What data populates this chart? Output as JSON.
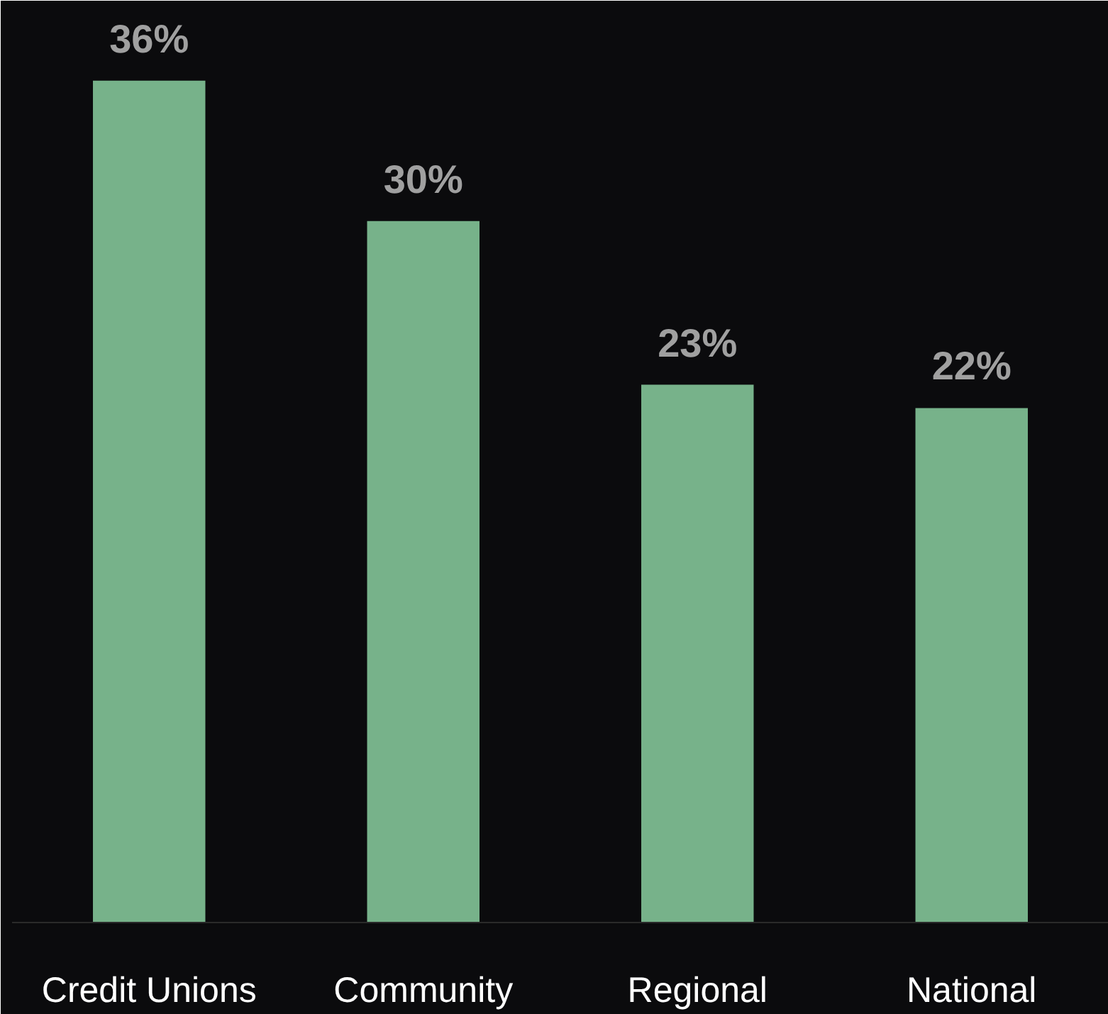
{
  "chart_data": {
    "type": "bar",
    "categories": [
      "Credit Unions",
      "Community",
      "Regional",
      "National"
    ],
    "values": [
      36,
      30,
      23,
      22
    ],
    "value_labels": [
      "36%",
      "30%",
      "23%",
      "22%"
    ],
    "color": "#77b28a",
    "grid": false
  }
}
